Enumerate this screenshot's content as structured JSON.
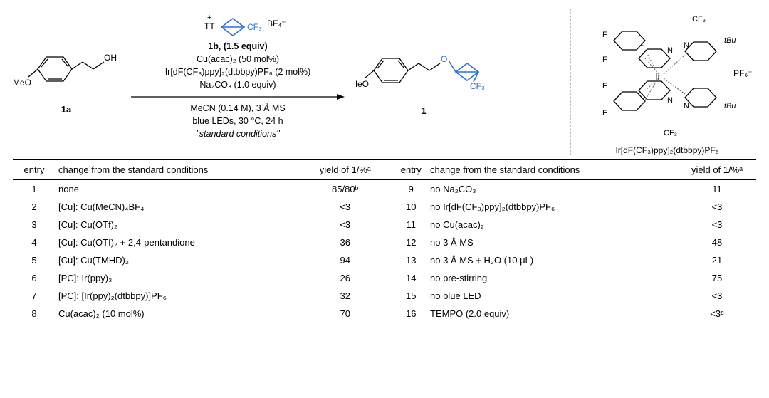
{
  "scheme": {
    "reactant_label_meo": "MeO",
    "reactant_label_oh": "OH",
    "reactant_label": "1a",
    "reagent_top_tt": "TT",
    "reagent_top_cf3": "CF₃",
    "reagent_top_bf4": "BF₄⁻",
    "reagent_top_plus": "+",
    "cond1": "1b, (1.5 equiv)",
    "cond2": "Cu(acac)₂ (50 mol%)",
    "cond3": "Ir[dF(CF₃)ppy]₂(dtbbpy)PF₆ (2 mol%)",
    "cond4": "Na₂CO₃ (1.0 equiv)",
    "cond5": "MeCN (0.14 M),  3 Å MS",
    "cond6": "blue LEDs, 30 °C, 24 h",
    "cond7": "\"standard conditions\"",
    "product_label_meo": "MeO",
    "product_label_o": "O",
    "product_label_cf3": "CF₃",
    "product_label": "1",
    "catalyst_label": "Ir[dF(CF₃)ppy]₂(dtbbpy)PF₆",
    "cat_f": "F",
    "cat_n": "N",
    "cat_ir": "Ir",
    "cat_cf3": "CF₃",
    "cat_tbu": "tBu",
    "cat_pf6": "PF₆⁻"
  },
  "table": {
    "h_entry": "entry",
    "h_change": "change from the standard conditions",
    "h_yield": "yield of 1/%ᵃ",
    "rows_left": [
      {
        "e": "1",
        "c": "none",
        "y": "85/80ᵇ"
      },
      {
        "e": "2",
        "c": "[Cu]: Cu(MeCN)₄BF₄",
        "y": "<3"
      },
      {
        "e": "3",
        "c": "[Cu]: Cu(OTf)₂",
        "y": "<3"
      },
      {
        "e": "4",
        "c": "[Cu]: Cu(OTf)₂ + 2,4-pentandione",
        "y": "36"
      },
      {
        "e": "5",
        "c": "[Cu]: Cu(TMHD)₂",
        "y": "94"
      },
      {
        "e": "6",
        "c": "[PC]: Ir(ppy)₃",
        "y": "26"
      },
      {
        "e": "7",
        "c": "[PC]: [Ir(ppy)₂(dtbbpy)]PF₆",
        "y": "32"
      },
      {
        "e": "8",
        "c": "Cu(acac)₂ (10 mol%)",
        "y": "70"
      }
    ],
    "rows_right": [
      {
        "e": "9",
        "c": "no Na₂CO₃",
        "y": "11"
      },
      {
        "e": "10",
        "c": "no Ir[dF(CF₃)ppy]₂(dtbbpy)PF₆",
        "y": "<3"
      },
      {
        "e": "11",
        "c": "no Cu(acac)₂",
        "y": "<3"
      },
      {
        "e": "12",
        "c": "no 3 Å MS",
        "y": "48"
      },
      {
        "e": "13",
        "c": "no 3 Å MS + H₂O (10 μL)",
        "y": "21"
      },
      {
        "e": "14",
        "c": "no pre-stirring",
        "y": "75"
      },
      {
        "e": "15",
        "c": "no blue LED",
        "y": "<3"
      },
      {
        "e": "16",
        "c": "TEMPO (2.0 equiv)",
        "y": "<3ᶜ"
      }
    ]
  },
  "colors": {
    "blue": "#2b6fd6",
    "black": "#000000",
    "divider": "#cccccc"
  }
}
